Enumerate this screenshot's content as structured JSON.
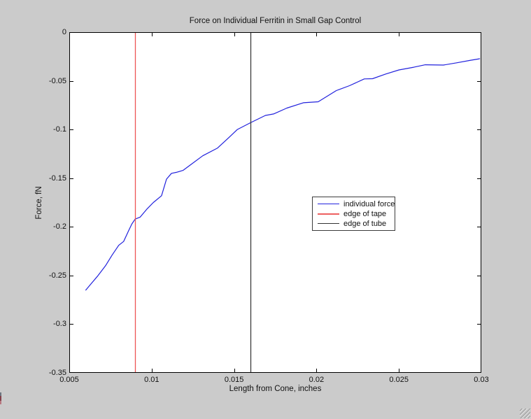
{
  "window": {
    "background_color": "#cbcbcb",
    "plot_background_color": "#ffffff",
    "axis_color": "#000000"
  },
  "chart_data": {
    "type": "line",
    "title": "Force on Individual Ferritin in Small Gap Control",
    "xlabel": "Length from Cone, inches",
    "ylabel": "Force, fN",
    "xlim": [
      0.005,
      0.03
    ],
    "ylim": [
      -0.35,
      0
    ],
    "grid": false,
    "x_ticks": [
      0.005,
      0.01,
      0.015,
      0.02,
      0.025,
      0.03
    ],
    "x_tick_labels": [
      "0.005",
      "0.01",
      "0.015",
      "0.02",
      "0.025",
      "0.03"
    ],
    "y_ticks": [
      0,
      -0.05,
      -0.1,
      -0.15,
      -0.2,
      -0.25,
      -0.3,
      -0.35
    ],
    "y_tick_labels": [
      "0",
      "-0.05",
      "-0.1",
      "-0.15",
      "-0.2",
      "-0.25",
      "-0.3",
      "-0.35"
    ],
    "legend": {
      "position": "center",
      "entries": [
        {
          "label": "individual force",
          "color": "#2222dd",
          "weight": 1
        },
        {
          "label": "edge of tape",
          "color": "#ee6060",
          "weight": 2
        },
        {
          "label": "edge of tube",
          "color": "#333333",
          "weight": 1
        }
      ]
    },
    "series": [
      {
        "name": "individual force",
        "style": "line",
        "color": "#2222dd",
        "x": [
          0.006,
          0.0063,
          0.0067,
          0.0072,
          0.0076,
          0.008,
          0.0083,
          0.0086,
          0.0088,
          0.009,
          0.0093,
          0.0097,
          0.0101,
          0.0106,
          0.0109,
          0.0112,
          0.0115,
          0.0119,
          0.0123,
          0.0131,
          0.014,
          0.0147,
          0.0152,
          0.016,
          0.0169,
          0.0174,
          0.0182,
          0.0192,
          0.0201,
          0.0212,
          0.022,
          0.0229,
          0.0234,
          0.0242,
          0.025,
          0.0259,
          0.0266,
          0.0277,
          0.0285,
          0.0293,
          0.0299
        ],
        "y": [
          -0.265,
          -0.259,
          -0.251,
          -0.24,
          -0.229,
          -0.219,
          -0.215,
          -0.204,
          -0.197,
          -0.192,
          -0.19,
          -0.182,
          -0.175,
          -0.168,
          -0.151,
          -0.145,
          -0.144,
          -0.142,
          -0.137,
          -0.127,
          -0.119,
          -0.108,
          -0.1,
          -0.093,
          -0.0855,
          -0.084,
          -0.078,
          -0.0725,
          -0.0715,
          -0.06,
          -0.055,
          -0.048,
          -0.0478,
          -0.043,
          -0.0388,
          -0.036,
          -0.0335,
          -0.0338,
          -0.0315,
          -0.029,
          -0.0273
        ]
      },
      {
        "name": "edge of tape",
        "style": "vline",
        "color": "#ee5555",
        "x": 0.009
      },
      {
        "name": "edge of tube",
        "style": "vline",
        "color": "#3a3a3a",
        "x": 0.016
      }
    ]
  }
}
